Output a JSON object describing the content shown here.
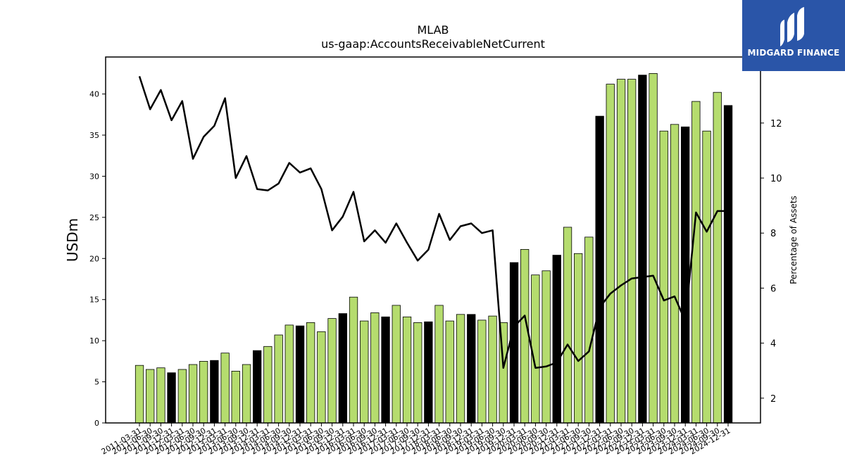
{
  "chart_data": {
    "type": "bar",
    "title": "MLAB",
    "subtitle": "us-gaap:AccountsReceivableNetCurrent",
    "ylabel": "USDm",
    "y2label": "Percentage of Assets",
    "ylim": [
      0,
      44.5
    ],
    "y2lim": [
      1.1,
      14.4
    ],
    "yticks": [
      0,
      5,
      10,
      15,
      20,
      25,
      30,
      35,
      40
    ],
    "y2ticks": [
      2,
      4,
      6,
      8,
      10,
      12
    ],
    "categories": [
      "2011-03-31",
      "2011-06-30",
      "2011-09-30",
      "2011-12-31",
      "2012-03-31",
      "2012-06-30",
      "2012-09-30",
      "2012-12-31",
      "2013-03-31",
      "2013-06-30",
      "2013-09-30",
      "2013-12-31",
      "2014-03-31",
      "2014-06-30",
      "2014-09-30",
      "2014-12-31",
      "2015-03-31",
      "2015-06-30",
      "2015-09-30",
      "2015-12-31",
      "2016-03-31",
      "2016-06-30",
      "2016-09-30",
      "2016-12-31",
      "2017-03-31",
      "2017-06-30",
      "2017-09-30",
      "2017-12-31",
      "2018-03-31",
      "2018-06-30",
      "2018-09-30",
      "2018-12-31",
      "2019-03-31",
      "2019-06-30",
      "2019-09-30",
      "2019-12-31",
      "2020-03-31",
      "2020-06-30",
      "2020-09-30",
      "2020-12-31",
      "2021-03-31",
      "2021-06-30",
      "2021-09-30",
      "2021-12-31",
      "2022-03-31",
      "2022-06-30",
      "2022-09-30",
      "2022-12-31",
      "2023-03-31",
      "2023-06-30",
      "2023-09-30",
      "2023-12-31",
      "2024-03-31",
      "2024-06-30",
      "2024-09-30",
      "2024-12-31"
    ],
    "series": [
      {
        "name": "",
        "kind": "bar",
        "axis": "left",
        "values": [
          7.0,
          6.5,
          6.7,
          6.1,
          6.5,
          7.1,
          7.5,
          7.6,
          8.5,
          6.3,
          7.1,
          8.8,
          9.3,
          10.7,
          11.9,
          11.8,
          12.2,
          11.1,
          12.7,
          13.3,
          15.3,
          12.4,
          13.4,
          12.9,
          14.3,
          12.9,
          12.2,
          12.3,
          14.3,
          12.4,
          13.2,
          13.2,
          12.5,
          13.0,
          12.2,
          19.5,
          21.1,
          18.0,
          18.5,
          20.4,
          23.8,
          20.6,
          22.6,
          37.3,
          41.2,
          41.8,
          41.8,
          42.3,
          42.5,
          35.5,
          36.3,
          36.0,
          39.1,
          35.5,
          40.2,
          38.6
        ],
        "highlight_indices": [
          3,
          7,
          11,
          15,
          19,
          23,
          27,
          31,
          35,
          39,
          43,
          47,
          51,
          55
        ],
        "color": "#b5dc6e",
        "highlight_color": "#000000"
      },
      {
        "name": "",
        "kind": "line",
        "axis": "right",
        "values": [
          13.7,
          12.5,
          13.2,
          12.1,
          12.8,
          10.7,
          11.5,
          11.9,
          12.9,
          10.0,
          10.8,
          9.6,
          9.55,
          9.8,
          10.55,
          10.2,
          10.35,
          9.6,
          8.1,
          8.6,
          9.5,
          7.7,
          8.1,
          7.65,
          8.35,
          7.65,
          7.0,
          7.4,
          8.7,
          7.75,
          8.25,
          8.35,
          8.0,
          8.1,
          3.1,
          4.6,
          5.0,
          3.1,
          3.15,
          3.3,
          3.95,
          3.35,
          3.7,
          5.3,
          5.8,
          6.1,
          6.35,
          6.4,
          6.45,
          5.55,
          5.7,
          4.8,
          8.75,
          8.05,
          8.8,
          8.8
        ],
        "color": "#000000"
      }
    ],
    "grid": false,
    "legend": "none"
  },
  "logo": {
    "text": "MIDGARD FINANCE",
    "icon": "midgard-logo-icon",
    "background": "#2a55a8"
  }
}
